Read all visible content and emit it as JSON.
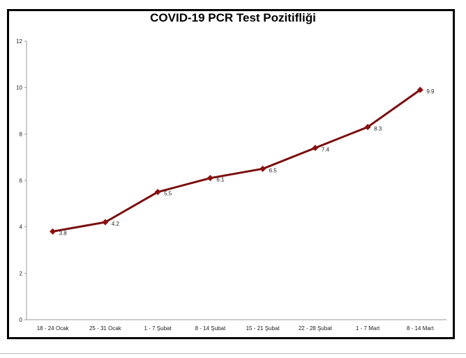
{
  "chart_data": {
    "type": "line",
    "title": "COVID-19 PCR Test Pozitifliği",
    "xlabel": "",
    "ylabel": "",
    "categories": [
      "18 - 24 Ocak",
      "25 - 31 Ocak",
      "1 - 7 Şubat",
      "8 - 14 Şubat",
      "15 - 21 Şubat",
      "22 - 28 Şubat",
      "1 - 7 Mart",
      "8 - 14 Mart"
    ],
    "series": [
      {
        "values": [
          3.8,
          4.2,
          5.5,
          6.1,
          6.5,
          7.4,
          8.3,
          9.9
        ]
      }
    ],
    "data_labels": [
      "3.8",
      "4.2",
      "5.5",
      "6.1",
      "6.5",
      "7.4",
      "8.3",
      "9.9"
    ],
    "ylim": [
      0,
      12
    ],
    "yticks": [
      0,
      2,
      4,
      6,
      8,
      10,
      12
    ],
    "grid": false,
    "line_color": "#7a0c0c",
    "marker_color": "#8b1010"
  }
}
